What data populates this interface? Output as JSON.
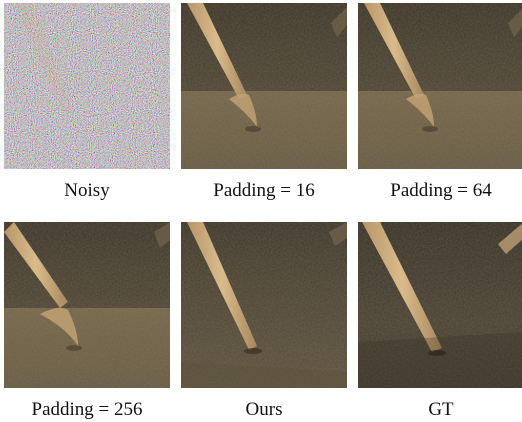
{
  "figure": {
    "panels": [
      {
        "id": "noisy",
        "caption": "Noisy"
      },
      {
        "id": "padding-16",
        "caption": "Padding = 16"
      },
      {
        "id": "padding-64",
        "caption": "Padding = 64"
      },
      {
        "id": "padding-256",
        "caption": "Padding = 256"
      },
      {
        "id": "ours",
        "caption": "Ours"
      },
      {
        "id": "gt",
        "caption": "GT"
      }
    ]
  },
  "colors": {
    "background": "#ffffff",
    "scene_dark": "#3c3528",
    "scene_floor": "#6e6146",
    "stick": "#c9a877"
  }
}
